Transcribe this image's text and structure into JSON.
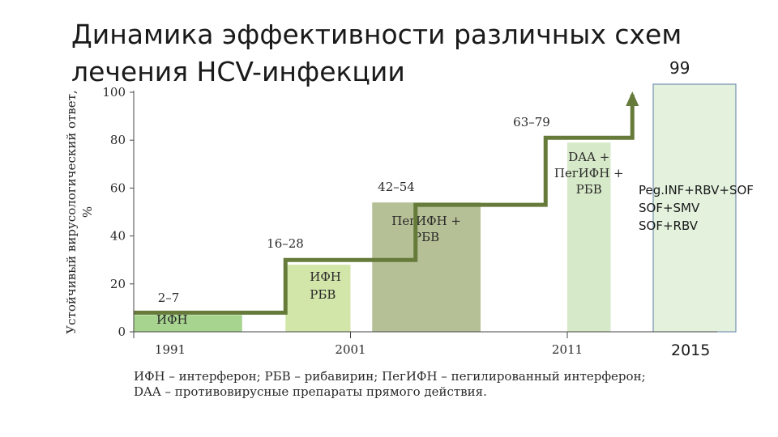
{
  "title": {
    "line1": "Динамика эффективности различных схем",
    "line2": "лечения HCV-инфекции"
  },
  "top_value": "99",
  "bottom_year": "2015",
  "regimens": [
    "Peg.INF+RBV+SOF",
    "SOF+SMV",
    "SOF+RBV"
  ],
  "footnote": {
    "line1": "ИФН – интерферон; РБВ – рибавирин; ПегИФН – пегилированный интерферон;",
    "line2": "DAA – противовирусные препараты прямого действия."
  },
  "colors": {
    "step_line": "#667a3a",
    "bar_ifn": "#a7d48e",
    "bar_ifn_rbv": "#d3e6a9",
    "bar_peg": "#b6c096",
    "bar_daa": "#d6e9c8",
    "box_2015": "#e3f1dd",
    "box_2015_border": "#5c7fa8"
  },
  "chart_data": {
    "type": "bar",
    "ylabel": "Устойчивый вирусологический ответ, %",
    "ylim": [
      0,
      100
    ],
    "yticks": [
      "0",
      "20",
      "40",
      "60",
      "80",
      "100"
    ],
    "xticks": [
      "1991",
      "2001",
      "2011"
    ],
    "x_range": [
      1991,
      2015
    ],
    "periods": [
      {
        "label_lines": [
          "ИФН"
        ],
        "range_label": "2–7",
        "start": 1991,
        "end": 1996,
        "value": 7,
        "bar_color": "#a7d48e"
      },
      {
        "label_lines": [
          "ИФН",
          "РБВ"
        ],
        "range_label": "16–28",
        "start": 1998,
        "end": 2001,
        "value": 28,
        "bar_color": "#d3e6a9"
      },
      {
        "label_lines": [
          "ПегИФН +",
          "РБВ"
        ],
        "range_label": "42–54",
        "start": 2002,
        "end": 2007,
        "value": 54,
        "bar_color": "#b6c096"
      },
      {
        "label_lines": [
          "DAA +",
          "ПегИФН +",
          "РБВ"
        ],
        "range_label": "63–79",
        "start": 2011,
        "end": 2013,
        "value": 79,
        "bar_color": "#d6e9c8"
      }
    ],
    "step_line": [
      {
        "x": 1991,
        "y": 8
      },
      {
        "x": 1998,
        "y": 8
      },
      {
        "x": 1998,
        "y": 30
      },
      {
        "x": 2004,
        "y": 30
      },
      {
        "x": 2004,
        "y": 53
      },
      {
        "x": 2010,
        "y": 53
      },
      {
        "x": 2010,
        "y": 81
      },
      {
        "x": 2014,
        "y": 81
      },
      {
        "x": 2014,
        "y": 99
      }
    ],
    "grid": false
  }
}
